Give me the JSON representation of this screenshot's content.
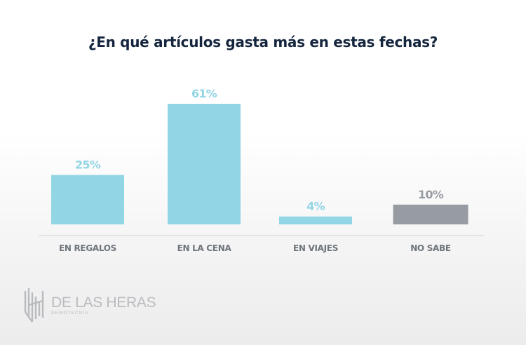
{
  "chart_data": {
    "type": "bar",
    "title": "¿En qué artículos gasta más en estas fechas?",
    "xlabel": "",
    "ylabel": "",
    "ylim": [
      0,
      61
    ],
    "grid": false,
    "categories": [
      "EN REGALOS",
      "EN LA CENA",
      "EN VIAJES",
      "NO SABE"
    ],
    "values": [
      25,
      61,
      4,
      10
    ],
    "value_labels": [
      "25%",
      "61%",
      "4%",
      "10%"
    ],
    "bar_colors": [
      "#92d5e5",
      "#92d5e5",
      "#92d5e5",
      "#979ca2"
    ],
    "label_colors": [
      "#92d5e5",
      "#92d5e5",
      "#92d5e5",
      "#979ca2"
    ],
    "unit": "%"
  },
  "branding": {
    "name": "DE LAS HERAS",
    "subtitle": "DEMOTECNIA"
  },
  "colors": {
    "title": "#14253d",
    "category_label": "#6f757b",
    "axis": "#e2e3e4",
    "logo": "#b9bbbe"
  }
}
